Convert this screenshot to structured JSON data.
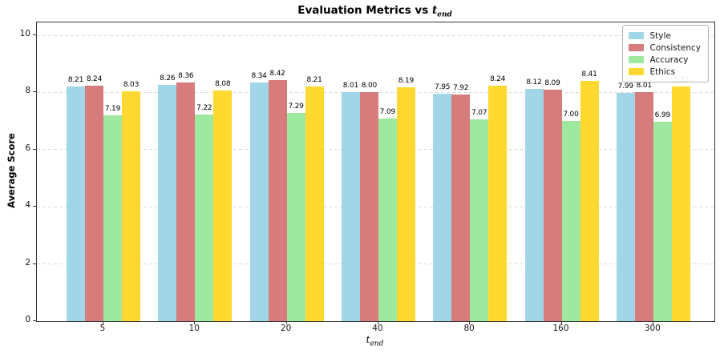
{
  "chart_data": {
    "type": "bar",
    "title": "Evaluation Metrics vs t_end",
    "title_prefix": "Evaluation Metrics vs ",
    "title_var": "t",
    "title_sub": "end",
    "xlabel": "t_end",
    "xlabel_var": "t",
    "xlabel_sub": "end",
    "ylabel": "Average Score",
    "categories": [
      "5",
      "10",
      "20",
      "40",
      "80",
      "160",
      "300"
    ],
    "series": [
      {
        "name": "Style",
        "color": "#A1D6E9",
        "values": [
          8.21,
          8.26,
          8.34,
          8.01,
          7.95,
          8.12,
          7.99
        ]
      },
      {
        "name": "Consistency",
        "color": "#D67C7C",
        "values": [
          8.24,
          8.36,
          8.42,
          8.0,
          7.92,
          8.09,
          8.01
        ]
      },
      {
        "name": "Accuracy",
        "color": "#9FE89F",
        "values": [
          7.19,
          7.22,
          7.29,
          7.09,
          7.07,
          7.0,
          6.99
        ]
      },
      {
        "name": "Ethics",
        "color": "#FFD930",
        "values": [
          8.03,
          8.08,
          8.21,
          8.19,
          8.24,
          8.41,
          8.22
        ]
      }
    ],
    "yticks": [
      0,
      2,
      4,
      6,
      8,
      10
    ],
    "ylim": [
      0,
      10.45
    ],
    "value_label_decimals": 2,
    "grid": "horizontal-dashed",
    "legend_position": "upper-right"
  }
}
